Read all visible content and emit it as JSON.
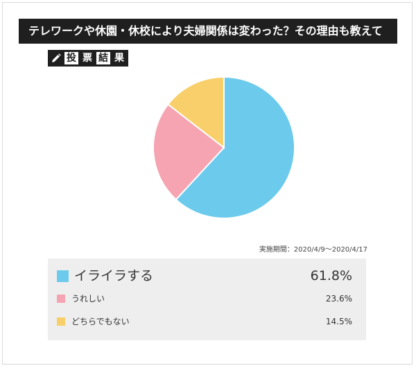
{
  "header": {
    "title": "テレワークや休園・休校により夫婦関係は変わった？その理由も教えて"
  },
  "result_label": {
    "icon": "pencil-icon",
    "chars": [
      "投",
      "票",
      "結",
      "果"
    ]
  },
  "survey_period": "実施期間：2020/4/9〜2020/4/17",
  "chart_data": {
    "type": "pie",
    "categories": [
      "イライラする",
      "うれしい",
      "どちらでもない"
    ],
    "values": [
      61.8,
      23.6,
      14.5
    ],
    "colors": [
      "#6ccaec",
      "#f6a4b1",
      "#f8cf6a"
    ],
    "start_angle_deg": 0,
    "direction": "clockwise",
    "legend": [
      {
        "label": "イライラする",
        "percent": "61.8%",
        "color": "#6ccaec"
      },
      {
        "label": "うれしい",
        "percent": "23.6%",
        "color": "#f6a4b1"
      },
      {
        "label": "どちらでもない",
        "percent": "14.5%",
        "color": "#f8cf6a"
      }
    ]
  }
}
